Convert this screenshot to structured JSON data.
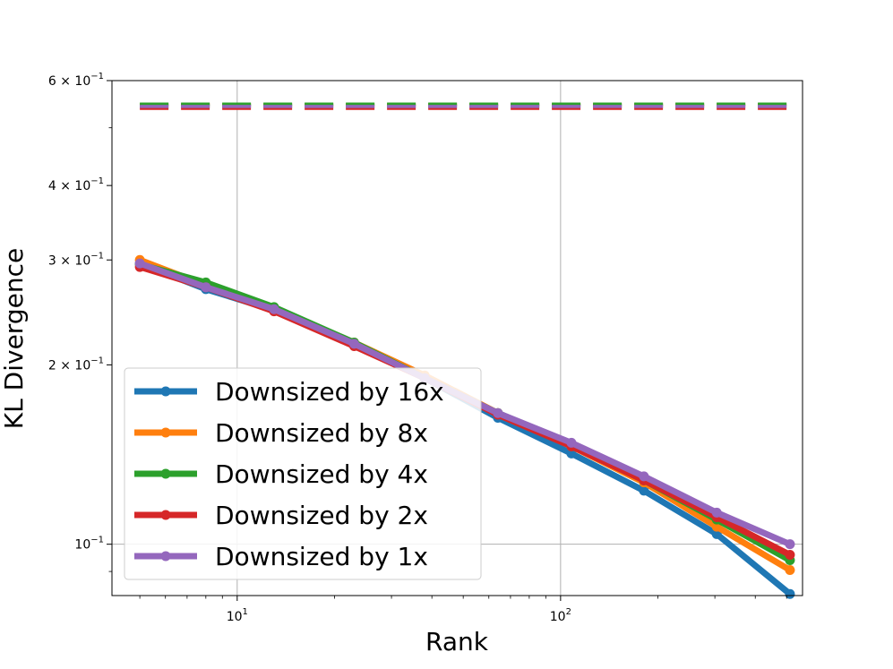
{
  "chart_data": {
    "type": "line",
    "xlabel": "Rank",
    "ylabel": "KL Divergence",
    "xscale": "log",
    "yscale": "log",
    "xlim": [
      4.1,
      560
    ],
    "ylim": [
      0.082,
      0.6
    ],
    "grid": true,
    "legend_position": "lower-left",
    "x_ticks": [
      {
        "value": 10,
        "base": "10",
        "exp": "1"
      },
      {
        "value": 100,
        "base": "10",
        "exp": "2"
      }
    ],
    "y_ticks": [
      {
        "value": 0.1,
        "mantissa": "",
        "base": "10",
        "exp": "−1"
      },
      {
        "value": 0.2,
        "mantissa": "2 × ",
        "base": "10",
        "exp": "−1"
      },
      {
        "value": 0.3,
        "mantissa": "3 × ",
        "base": "10",
        "exp": "−1"
      },
      {
        "value": 0.4,
        "mantissa": "4 × ",
        "base": "10",
        "exp": "−1"
      },
      {
        "value": 0.6,
        "mantissa": "6 × ",
        "base": "10",
        "exp": "−1"
      }
    ],
    "x": [
      5,
      8,
      13,
      23,
      38,
      64,
      108,
      181,
      304,
      512
    ],
    "series": [
      {
        "name": "Downsized by 16x",
        "color": "#1f77b4",
        "values": [
          0.296,
          0.268,
          0.247,
          0.216,
          0.19,
          0.163,
          0.142,
          0.123,
          0.104,
          0.0825
        ],
        "baseline": 0.545
      },
      {
        "name": "Downsized by 8x",
        "color": "#ff7f0e",
        "values": [
          0.3,
          0.272,
          0.249,
          0.218,
          0.192,
          0.166,
          0.146,
          0.127,
          0.107,
          0.0905
        ],
        "baseline": 0.547
      },
      {
        "name": "Downsized by 4x",
        "color": "#2ca02c",
        "values": [
          0.295,
          0.275,
          0.25,
          0.218,
          0.19,
          0.166,
          0.147,
          0.128,
          0.11,
          0.094
        ],
        "baseline": 0.548
      },
      {
        "name": "Downsized by 2x",
        "color": "#d62728",
        "values": [
          0.292,
          0.27,
          0.246,
          0.215,
          0.19,
          0.165,
          0.146,
          0.128,
          0.111,
          0.096
        ],
        "baseline": 0.539
      },
      {
        "name": "Downsized by 1x",
        "color": "#9467bd",
        "values": [
          0.296,
          0.27,
          0.248,
          0.217,
          0.19,
          0.166,
          0.148,
          0.13,
          0.113,
          0.1
        ],
        "baseline": 0.543
      }
    ]
  }
}
